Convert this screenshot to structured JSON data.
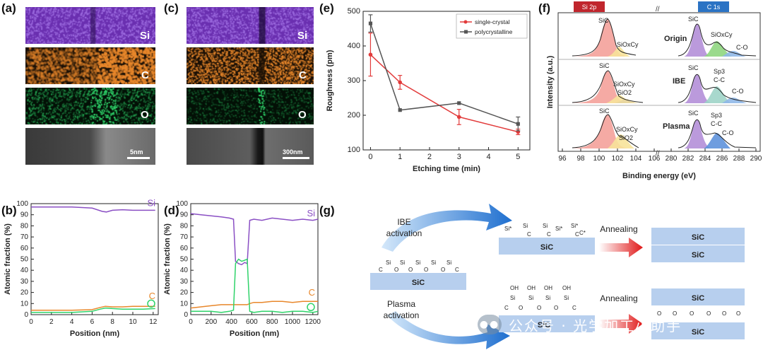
{
  "panel_labels": {
    "a": "(a)",
    "b": "(b)",
    "c": "(c)",
    "d": "(d)",
    "e": "(e)",
    "f": "(f)",
    "g": "(g)"
  },
  "panel_a": {
    "maps": [
      "Si",
      "C",
      "O"
    ],
    "scalebar": "5nm"
  },
  "panel_c": {
    "maps": [
      "Si",
      "C",
      "O"
    ],
    "scalebar": "300nm"
  },
  "colors": {
    "si": "#8a4fc4",
    "c": "#e8872b",
    "o": "#2fd36a",
    "red": "#e23b3b",
    "gray": "#555555",
    "blue_arrow": "#2a7fd4"
  },
  "chart_data": [
    {
      "id": "b",
      "type": "line",
      "title": "",
      "xlabel": "Position (nm)",
      "ylabel": "Atomic fraction (%)",
      "xlim": [
        0,
        12.5
      ],
      "ylim": [
        0,
        100
      ],
      "xticks": [
        0,
        2,
        4,
        6,
        8,
        10,
        12
      ],
      "yticks": [
        0,
        10,
        20,
        30,
        40,
        50,
        60,
        70,
        80,
        90,
        100
      ],
      "series": [
        {
          "name": "Si",
          "color": "#8a4fc4",
          "x": [
            0,
            2,
            4,
            6,
            7,
            7.4,
            8,
            9,
            10,
            11,
            12.2
          ],
          "y": [
            97,
            97,
            97,
            96,
            93,
            92.5,
            94,
            94.5,
            94,
            94,
            94
          ]
        },
        {
          "name": "C",
          "color": "#e8872b",
          "x": [
            0,
            2,
            4,
            6,
            6.8,
            7.3,
            8,
            9,
            10,
            11,
            12.2
          ],
          "y": [
            4,
            4,
            4,
            4.5,
            6.5,
            7.5,
            7,
            7,
            7.5,
            7.5,
            7.5
          ]
        },
        {
          "name": "O",
          "color": "#2fd36a",
          "x": [
            0,
            2,
            4,
            6,
            6.8,
            7.3,
            8,
            9,
            10,
            11,
            12.2
          ],
          "y": [
            2,
            2,
            2,
            3,
            5,
            6,
            5.5,
            5,
            5,
            5,
            5.5
          ]
        }
      ]
    },
    {
      "id": "d",
      "type": "line",
      "xlabel": "Position (nm)",
      "ylabel": "Atomic fraction (%)",
      "xlim": [
        0,
        1250
      ],
      "ylim": [
        0,
        100
      ],
      "xticks": [
        0,
        200,
        400,
        600,
        800,
        1000,
        1200
      ],
      "yticks": [
        0,
        10,
        20,
        30,
        40,
        50,
        60,
        70,
        80,
        90,
        100
      ],
      "series": [
        {
          "name": "Si",
          "color": "#8a4fc4",
          "x": [
            0,
            100,
            200,
            300,
            380,
            420,
            440,
            470,
            500,
            530,
            555,
            580,
            620,
            700,
            800,
            900,
            1000,
            1100,
            1200,
            1250
          ],
          "y": [
            91,
            90,
            89,
            88,
            87,
            86,
            48,
            46,
            45,
            47,
            46,
            85,
            86,
            85,
            87,
            86,
            85,
            86,
            85,
            86
          ]
        },
        {
          "name": "C",
          "color": "#e8872b",
          "x": [
            0,
            100,
            200,
            300,
            380,
            420,
            440,
            470,
            500,
            530,
            555,
            580,
            620,
            700,
            800,
            900,
            1000,
            1100,
            1200,
            1250
          ],
          "y": [
            6,
            7,
            8,
            9,
            9,
            9,
            9,
            9,
            9,
            9,
            9,
            10,
            11,
            11,
            12,
            12,
            11,
            12,
            12,
            12
          ]
        },
        {
          "name": "O",
          "color": "#2fd36a",
          "x": [
            0,
            100,
            200,
            300,
            380,
            420,
            440,
            470,
            500,
            530,
            555,
            580,
            620,
            700,
            800,
            900,
            1000,
            1100,
            1200,
            1250
          ],
          "y": [
            3,
            3,
            3,
            2,
            3,
            4,
            46,
            50,
            48,
            49,
            50,
            3,
            2,
            3,
            3,
            2,
            3,
            3,
            2,
            3
          ]
        }
      ]
    },
    {
      "id": "e",
      "type": "line",
      "xlabel": "Etching time (min)",
      "ylabel": "Roughness (pm)",
      "xlim": [
        -0.25,
        5.4
      ],
      "ylim": [
        100,
        500
      ],
      "xticks": [
        0,
        1,
        2,
        3,
        4,
        5
      ],
      "yticks": [
        100,
        200,
        300,
        400,
        500
      ],
      "legend": "top-right",
      "series": [
        {
          "name": "single-crystal",
          "color": "#e23b3b",
          "x": [
            0,
            1,
            3,
            5
          ],
          "y": [
            375,
            295,
            195,
            152
          ],
          "err": [
            62,
            20,
            22,
            8
          ]
        },
        {
          "name": "polycrystalline",
          "color": "#555555",
          "x": [
            0,
            1,
            3,
            5
          ],
          "y": [
            465,
            215,
            235,
            175
          ],
          "err": [
            25,
            0,
            0,
            20
          ]
        }
      ]
    },
    {
      "id": "f",
      "type": "line",
      "xlabel": "Binding energy (eV)",
      "ylabel": "Intensity (a.u.)",
      "xticks": [
        "96",
        "98",
        "100",
        "102",
        "104",
        "106",
        "280",
        "282",
        "284",
        "286",
        "288",
        "290"
      ],
      "tabs": [
        "Si 2p",
        "C 1s"
      ],
      "rows": [
        {
          "name": "Origin",
          "labels": [
            "SiC",
            "SiOxCy",
            "SiC",
            "SiOxCy",
            "C-O"
          ]
        },
        {
          "name": "IBE",
          "labels": [
            "SiC",
            "SiOxCy",
            "SiO2",
            "SiC",
            "Sp3",
            "C-C",
            "C-O"
          ]
        },
        {
          "name": "Plasma",
          "labels": [
            "SiC",
            "SiOxCy",
            "SiO2",
            "SiC",
            "Sp3",
            "C-C",
            "C-O"
          ]
        }
      ]
    }
  ],
  "panel_g": {
    "ibe_activation": "IBE\nactivation",
    "plasma_activation": "Plasma\nactivation",
    "annealing": "Annealing",
    "sic": "SiC",
    "si_star": "Si*",
    "c_star": "C*",
    "si": "Si",
    "c": "C",
    "o": "O",
    "oh": "OH"
  },
  "watermark": "公众号 · 光学加工小助手"
}
